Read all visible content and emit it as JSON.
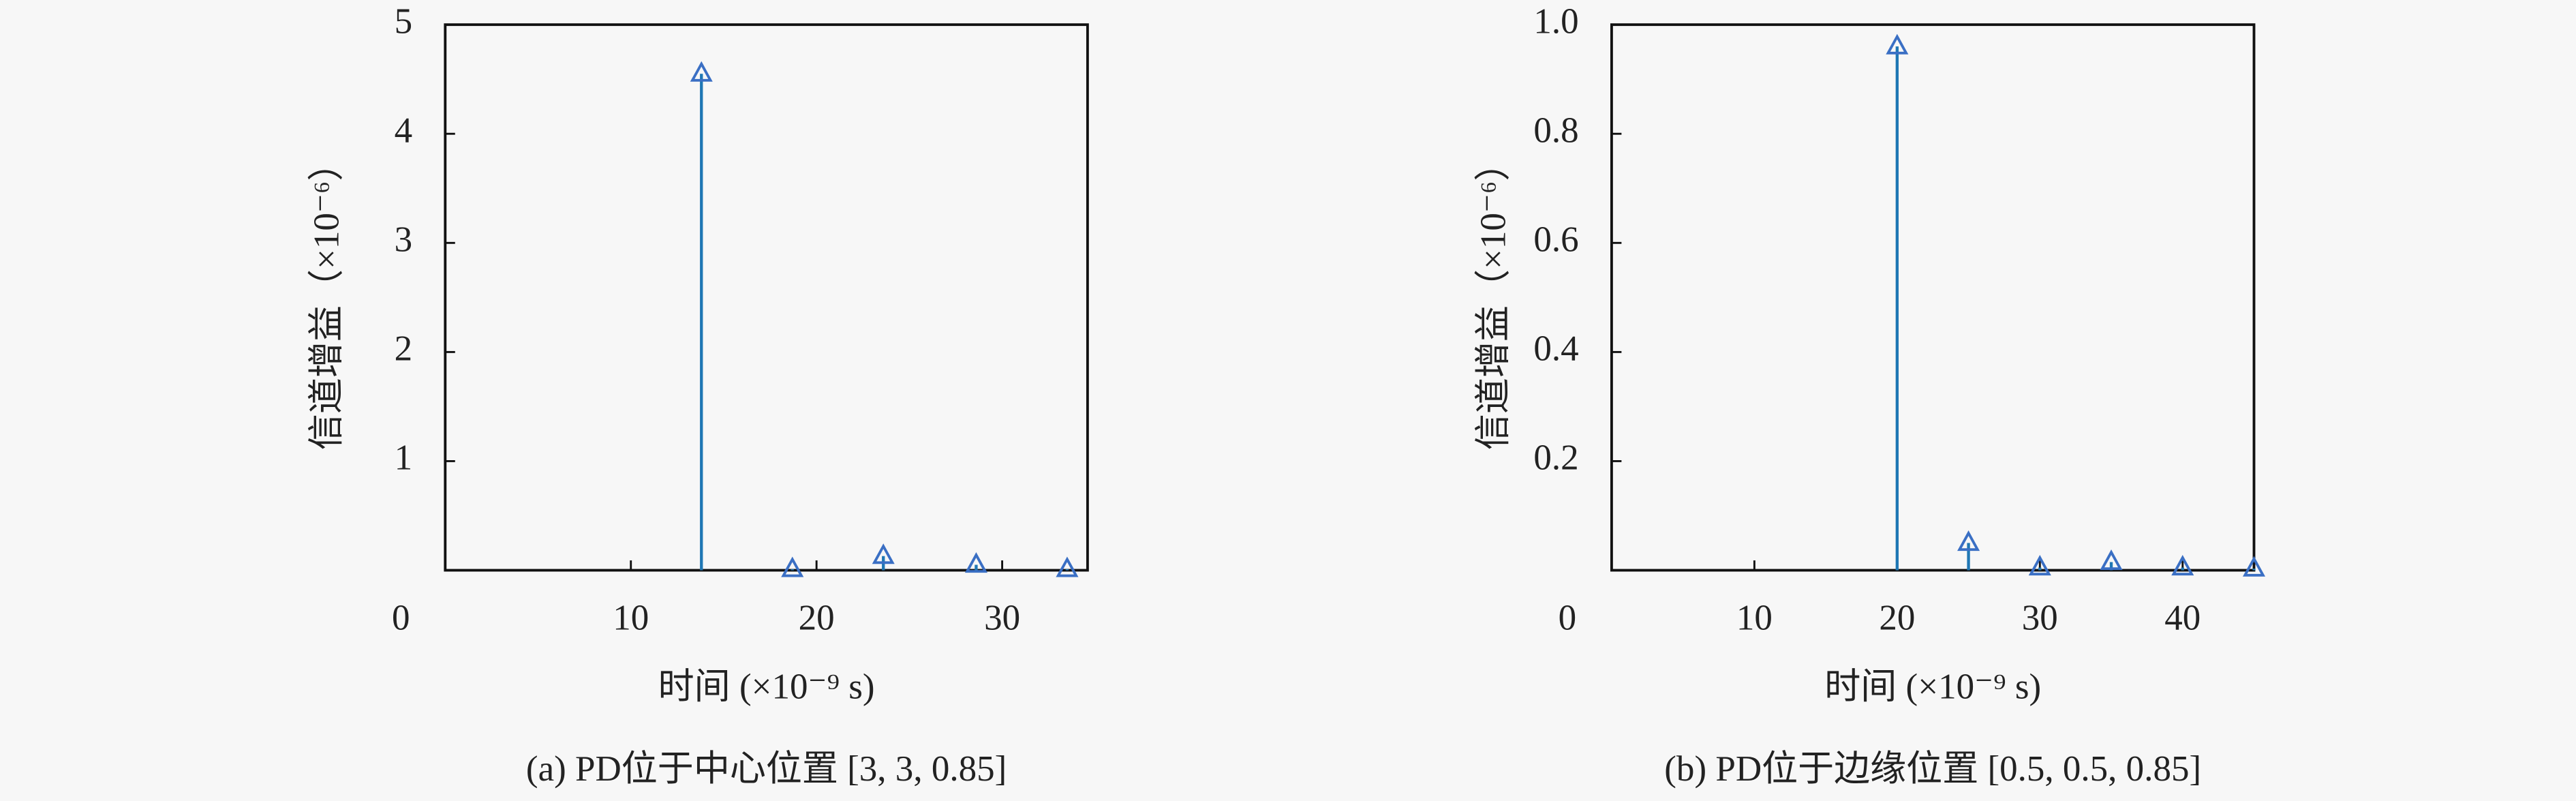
{
  "chart_data": [
    {
      "type": "stem",
      "caption": "(a) PD位于中心位置 [3, 3, 0.85]",
      "xlabel": "时间 (×10⁻⁹ s)",
      "ylabel": "信道增益（×10⁻⁶）",
      "x": [
        13.8,
        18.7,
        23.6,
        28.6,
        33.5
      ],
      "values": [
        4.55,
        0.01,
        0.13,
        0.05,
        0.01
      ],
      "color": "#1f77b4",
      "marker_color": "#3a6fc4",
      "xlim": [
        0,
        34.6
      ],
      "xticks": [
        0,
        10,
        20,
        30
      ],
      "ylim": [
        0,
        5
      ],
      "yticks": [
        1,
        2,
        3,
        4,
        5
      ]
    },
    {
      "type": "stem",
      "caption": "(b) PD位于边缘位置 [0.5, 0.5, 0.85]",
      "xlabel": "时间 (×10⁻⁹ s)",
      "ylabel": "信道增益（×10⁻⁶）",
      "x": [
        20,
        25,
        30,
        35,
        40,
        45
      ],
      "values": [
        0.96,
        0.05,
        0.005,
        0.015,
        0.005,
        0.003
      ],
      "color": "#1f77b4",
      "marker_color": "#3a6fc4",
      "xlim": [
        0,
        45
      ],
      "xticks": [
        0,
        10,
        20,
        30,
        40
      ],
      "ylim": [
        0,
        1
      ],
      "yticks": [
        0.2,
        0.4,
        0.6,
        0.8,
        {
          "value": 1,
          "label": "1.0"
        }
      ]
    }
  ]
}
